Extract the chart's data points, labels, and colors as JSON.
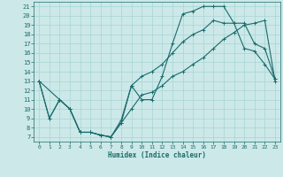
{
  "xlabel": "Humidex (Indice chaleur)",
  "xlim": [
    -0.5,
    23.5
  ],
  "ylim": [
    6.5,
    21.5
  ],
  "xticks": [
    0,
    1,
    2,
    3,
    4,
    5,
    6,
    7,
    8,
    9,
    10,
    11,
    12,
    13,
    14,
    15,
    16,
    17,
    18,
    19,
    20,
    21,
    22,
    23
  ],
  "yticks": [
    7,
    8,
    9,
    10,
    11,
    12,
    13,
    14,
    15,
    16,
    17,
    18,
    19,
    20,
    21
  ],
  "bg_color": "#cce8e8",
  "grid_color": "#a8d4d4",
  "line_color": "#1a6b6b",
  "line1_x": [
    0,
    1,
    2,
    3,
    4,
    5,
    6,
    7,
    8,
    9,
    10,
    11,
    12,
    13,
    14,
    15,
    16,
    17,
    18,
    19,
    20,
    21,
    22,
    23
  ],
  "line1_y": [
    13,
    9,
    11,
    10,
    7.5,
    7.5,
    7.2,
    7.0,
    8.5,
    12.5,
    11.0,
    11.0,
    13.5,
    17.0,
    20.2,
    20.5,
    21.0,
    21.0,
    21.0,
    19.2,
    16.5,
    16.2,
    14.8,
    13.2
  ],
  "line2_x": [
    0,
    2,
    3,
    4,
    5,
    6,
    7,
    8,
    9,
    10,
    11,
    12,
    13,
    14,
    15,
    16,
    17,
    18,
    19,
    20,
    21,
    22,
    23
  ],
  "line2_y": [
    13,
    11.0,
    10.0,
    7.5,
    7.5,
    7.2,
    7.0,
    8.8,
    12.5,
    13.5,
    14.0,
    14.8,
    16.0,
    17.2,
    18.0,
    18.5,
    19.5,
    19.2,
    19.2,
    19.2,
    17.0,
    16.5,
    13.2
  ],
  "line3_x": [
    0,
    1,
    2,
    3,
    4,
    5,
    6,
    7,
    8,
    9,
    10,
    11,
    12,
    13,
    14,
    15,
    16,
    17,
    18,
    19,
    20,
    21,
    22,
    23
  ],
  "line3_y": [
    13,
    9,
    11,
    10,
    7.5,
    7.5,
    7.2,
    7.0,
    8.5,
    10.0,
    11.5,
    11.8,
    12.5,
    13.5,
    14.0,
    14.8,
    15.5,
    16.5,
    17.5,
    18.2,
    19.0,
    19.2,
    19.5,
    13.0
  ]
}
